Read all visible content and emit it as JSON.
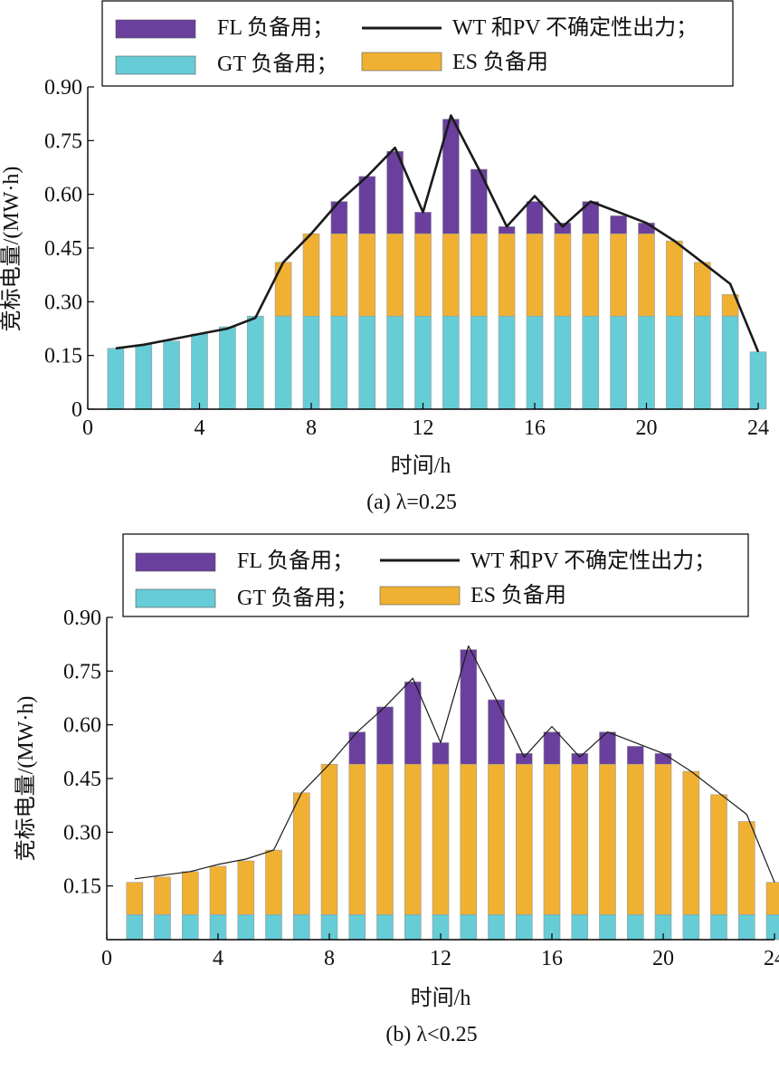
{
  "legend": {
    "fl": "FL 负备用；",
    "line": "WT 和PV 不确定性出力；",
    "gt": "GT 负备用；",
    "es": "ES 负备用"
  },
  "colors": {
    "fl": "#6a3f9e",
    "gt": "#66ccd6",
    "es": "#f0b133",
    "line": "#1a1a1a",
    "axis": "#000000"
  },
  "chart_data": [
    {
      "type": "bar",
      "stacked": true,
      "caption": "(a)  λ=0.25",
      "xlabel": "时间/h",
      "ylabel": "竞标电量/(MW·h)",
      "xlim": [
        0,
        24
      ],
      "ylim": [
        0,
        0.9
      ],
      "xticks": [
        "0",
        "4",
        "8",
        "12",
        "16",
        "20",
        "24"
      ],
      "yticks": [
        "0",
        "0.15",
        "0.30",
        "0.45",
        "0.60",
        "0.75",
        "0.90"
      ],
      "legend_position": "top",
      "categories": [
        1,
        2,
        3,
        4,
        5,
        6,
        7,
        8,
        9,
        10,
        11,
        12,
        13,
        14,
        15,
        16,
        17,
        18,
        19,
        20,
        21,
        22,
        23,
        24
      ],
      "series": [
        {
          "name": "GT 负备用",
          "key": "gt",
          "values": [
            0.17,
            0.18,
            0.19,
            0.21,
            0.23,
            0.26,
            0.26,
            0.26,
            0.26,
            0.26,
            0.26,
            0.26,
            0.26,
            0.26,
            0.26,
            0.26,
            0.26,
            0.26,
            0.26,
            0.26,
            0.26,
            0.26,
            0.26,
            0.16
          ]
        },
        {
          "name": "ES 负备用",
          "key": "es",
          "values": [
            0,
            0,
            0,
            0,
            0,
            0,
            0.15,
            0.23,
            0.23,
            0.23,
            0.23,
            0.23,
            0.23,
            0.23,
            0.23,
            0.23,
            0.23,
            0.23,
            0.23,
            0.23,
            0.21,
            0.15,
            0.06,
            0
          ]
        },
        {
          "name": "FL 负备用",
          "key": "fl",
          "values": [
            0,
            0,
            0,
            0,
            0,
            0,
            0,
            0,
            0.09,
            0.16,
            0.23,
            0.06,
            0.32,
            0.18,
            0.02,
            0.09,
            0.03,
            0.09,
            0.05,
            0.03,
            0,
            0,
            0,
            0
          ]
        }
      ],
      "line": {
        "name": "WT 和PV 不确定性出力",
        "values": [
          0.17,
          0.18,
          0.195,
          0.21,
          0.225,
          0.255,
          0.41,
          0.49,
          0.58,
          0.65,
          0.73,
          0.55,
          0.82,
          0.67,
          0.51,
          0.595,
          0.51,
          0.58,
          0.55,
          0.52,
          0.47,
          0.41,
          0.35,
          0.16
        ]
      }
    },
    {
      "type": "bar",
      "stacked": true,
      "caption": "(b)  λ<0.25",
      "xlabel": "时间/h",
      "ylabel": "竞标电量/(MW·h)",
      "xlim": [
        0,
        24
      ],
      "ylim": [
        0,
        0.9
      ],
      "xticks": [
        "0",
        "4",
        "8",
        "12",
        "16",
        "20",
        "24"
      ],
      "yticks": [
        "0.15",
        "0.30",
        "0.45",
        "0.60",
        "0.75",
        "0.90"
      ],
      "legend_position": "top",
      "categories": [
        1,
        2,
        3,
        4,
        5,
        6,
        7,
        8,
        9,
        10,
        11,
        12,
        13,
        14,
        15,
        16,
        17,
        18,
        19,
        20,
        21,
        22,
        23,
        24
      ],
      "series": [
        {
          "name": "GT 负备用",
          "key": "gt",
          "values": [
            0.07,
            0.07,
            0.07,
            0.07,
            0.07,
            0.07,
            0.07,
            0.07,
            0.07,
            0.07,
            0.07,
            0.07,
            0.07,
            0.07,
            0.07,
            0.07,
            0.07,
            0.07,
            0.07,
            0.07,
            0.07,
            0.07,
            0.07,
            0.07
          ]
        },
        {
          "name": "ES 负备用",
          "key": "es",
          "values": [
            0.09,
            0.105,
            0.12,
            0.135,
            0.15,
            0.18,
            0.34,
            0.42,
            0.42,
            0.42,
            0.42,
            0.42,
            0.42,
            0.42,
            0.42,
            0.42,
            0.42,
            0.42,
            0.42,
            0.42,
            0.4,
            0.335,
            0.26,
            0.09
          ]
        },
        {
          "name": "FL 负备用",
          "key": "fl",
          "values": [
            0,
            0,
            0,
            0,
            0,
            0,
            0,
            0,
            0.09,
            0.16,
            0.23,
            0.06,
            0.32,
            0.18,
            0.03,
            0.09,
            0.03,
            0.09,
            0.05,
            0.03,
            0,
            0,
            0,
            0
          ]
        }
      ],
      "line": {
        "name": "WT 和PV 不确定性出力",
        "values": [
          0.17,
          0.18,
          0.19,
          0.21,
          0.225,
          0.25,
          0.41,
          0.49,
          0.58,
          0.65,
          0.73,
          0.55,
          0.82,
          0.67,
          0.51,
          0.595,
          0.51,
          0.58,
          0.55,
          0.52,
          0.47,
          0.41,
          0.35,
          0.16
        ]
      }
    }
  ]
}
